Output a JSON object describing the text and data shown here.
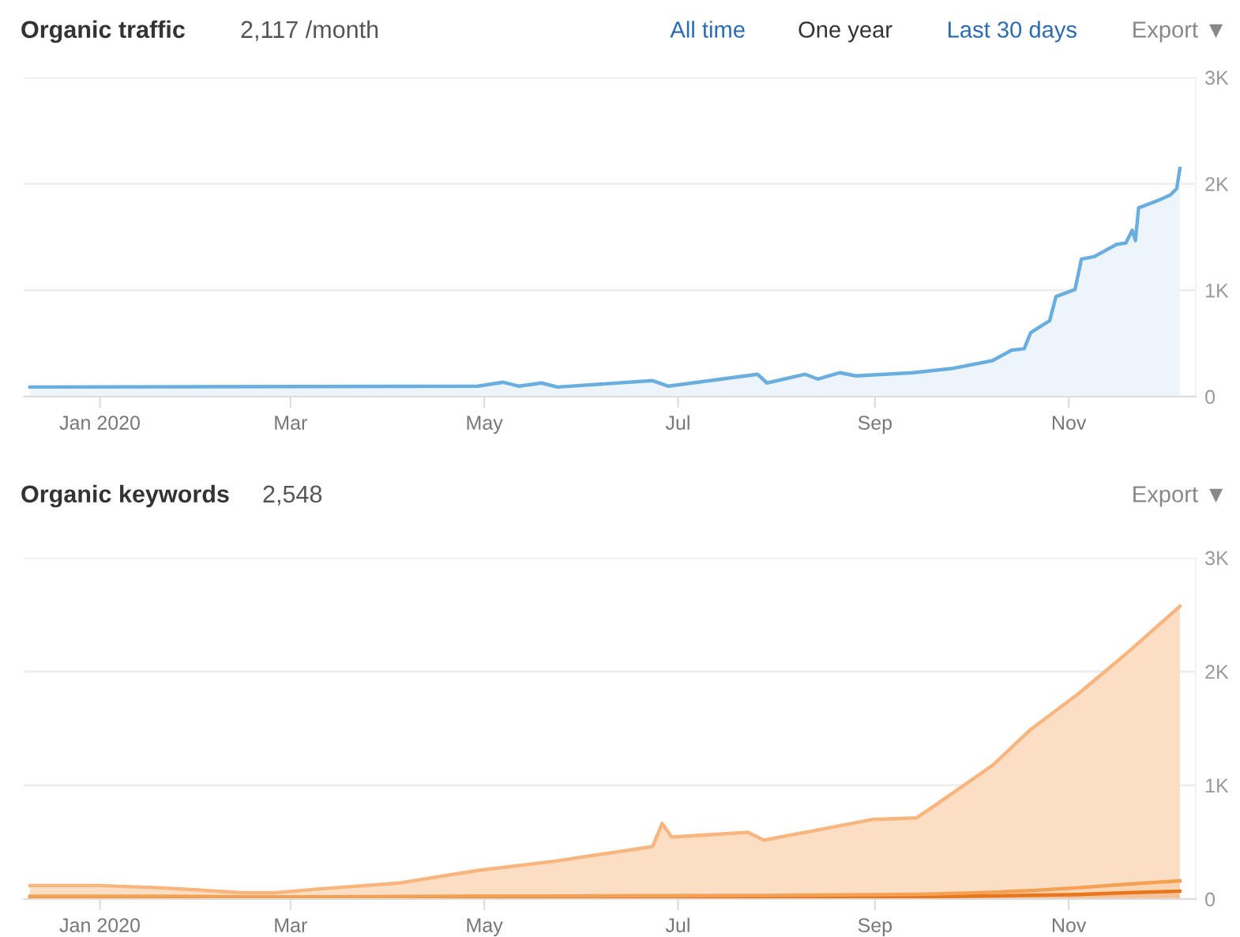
{
  "chart_data": [
    {
      "type": "area",
      "title": "Organic traffic",
      "annotations": [
        "2,117 /month",
        "All time",
        "One year",
        "Last 30 days",
        "Export ▼"
      ],
      "x": [
        "2019-12-10",
        "2020-04-29",
        "2020-05-07",
        "2020-05-12",
        "2020-05-19",
        "2020-05-24",
        "2020-06-23",
        "2020-06-28",
        "2020-07-26",
        "2020-07-29",
        "2020-08-10",
        "2020-08-14",
        "2020-08-21",
        "2020-08-26",
        "2020-09-13",
        "2020-09-25",
        "2020-10-08",
        "2020-10-14",
        "2020-10-18",
        "2020-10-20",
        "2020-10-26",
        "2020-10-28",
        "2020-11-03",
        "2020-11-05",
        "2020-11-09",
        "2020-11-16",
        "2020-11-19",
        "2020-11-21",
        "2020-11-22",
        "2020-11-23",
        "2020-11-29",
        "2020-12-03",
        "2020-12-05",
        "2020-12-06"
      ],
      "series": [
        {
          "color": "#6aaee0",
          "values": [
            90,
            98,
            135,
            98,
            128,
            90,
            150,
            98,
            210,
            128,
            210,
            165,
            225,
            195,
            225,
            263,
            338,
            436,
            450,
            600,
            714,
            940,
            1007,
            1293,
            1315,
            1429,
            1444,
            1564,
            1467,
            1774,
            1842,
            1895,
            1955,
            2143
          ]
        }
      ],
      "xlim": [
        "2019-12-08",
        "2020-12-11"
      ],
      "ylim": [
        0,
        3000
      ],
      "xticks": [
        {
          "value": "2020-01-01",
          "label": "Jan 2020"
        },
        {
          "value": "2020-03-01",
          "label": "Mar"
        },
        {
          "value": "2020-05-01",
          "label": "May"
        },
        {
          "value": "2020-07-01",
          "label": "Jul"
        },
        {
          "value": "2020-09-01",
          "label": "Sep"
        },
        {
          "value": "2020-11-01",
          "label": "Nov"
        }
      ],
      "yticks": [
        0,
        {
          "value": 1000,
          "label": "1K"
        },
        {
          "value": 2000,
          "label": "2K"
        },
        {
          "value": 3000,
          "label": "3K"
        }
      ],
      "grid": "y"
    },
    {
      "type": "area",
      "title": "Organic keywords",
      "annotations": [
        "2,548",
        "Export ▼"
      ],
      "stacked": true,
      "x": [
        "2019-12-10",
        "2020-01-01",
        "2020-01-21",
        "2020-02-15",
        "2020-02-25",
        "2020-03-11",
        "2020-04-04",
        "2020-04-29",
        "2020-05-24",
        "2020-06-23",
        "2020-06-26",
        "2020-06-29",
        "2020-07-23",
        "2020-07-28",
        "2020-08-31",
        "2020-09-14",
        "2020-09-20",
        "2020-10-08",
        "2020-10-20",
        "2020-11-04",
        "2020-11-19",
        "2020-12-06"
      ],
      "series": [
        {
          "color": "#e8761c",
          "values": [
            14,
            14,
            14,
            12,
            12,
            12,
            13,
            14,
            15,
            16,
            16,
            16,
            17,
            17,
            20,
            22,
            23,
            28,
            33,
            40,
            55,
            70
          ]
        },
        {
          "color": "#f5a052",
          "values": [
            10,
            10,
            10,
            8,
            8,
            8,
            10,
            12,
            12,
            14,
            14,
            14,
            15,
            15,
            18,
            20,
            22,
            32,
            42,
            60,
            75,
            90
          ]
        },
        {
          "color": "#f8b67e",
          "values": [
            95,
            95,
            74,
            36,
            36,
            71,
            117,
            226,
            309,
            432,
            634,
            515,
            555,
            485,
            661,
            671,
            780,
            1115,
            1415,
            1704,
            2024,
            2413
          ]
        }
      ],
      "xlim": [
        "2019-12-08",
        "2020-12-11"
      ],
      "ylim": [
        0,
        3000
      ],
      "xticks": [
        {
          "value": "2020-01-01",
          "label": "Jan 2020"
        },
        {
          "value": "2020-03-01",
          "label": "Mar"
        },
        {
          "value": "2020-05-01",
          "label": "May"
        },
        {
          "value": "2020-07-01",
          "label": "Jul"
        },
        {
          "value": "2020-09-01",
          "label": "Sep"
        },
        {
          "value": "2020-11-01",
          "label": "Nov"
        }
      ],
      "yticks": [
        0,
        {
          "value": 1000,
          "label": "1K"
        },
        {
          "value": 2000,
          "label": "2K"
        },
        {
          "value": 3000,
          "label": "3K"
        }
      ],
      "grid": "y"
    }
  ]
}
